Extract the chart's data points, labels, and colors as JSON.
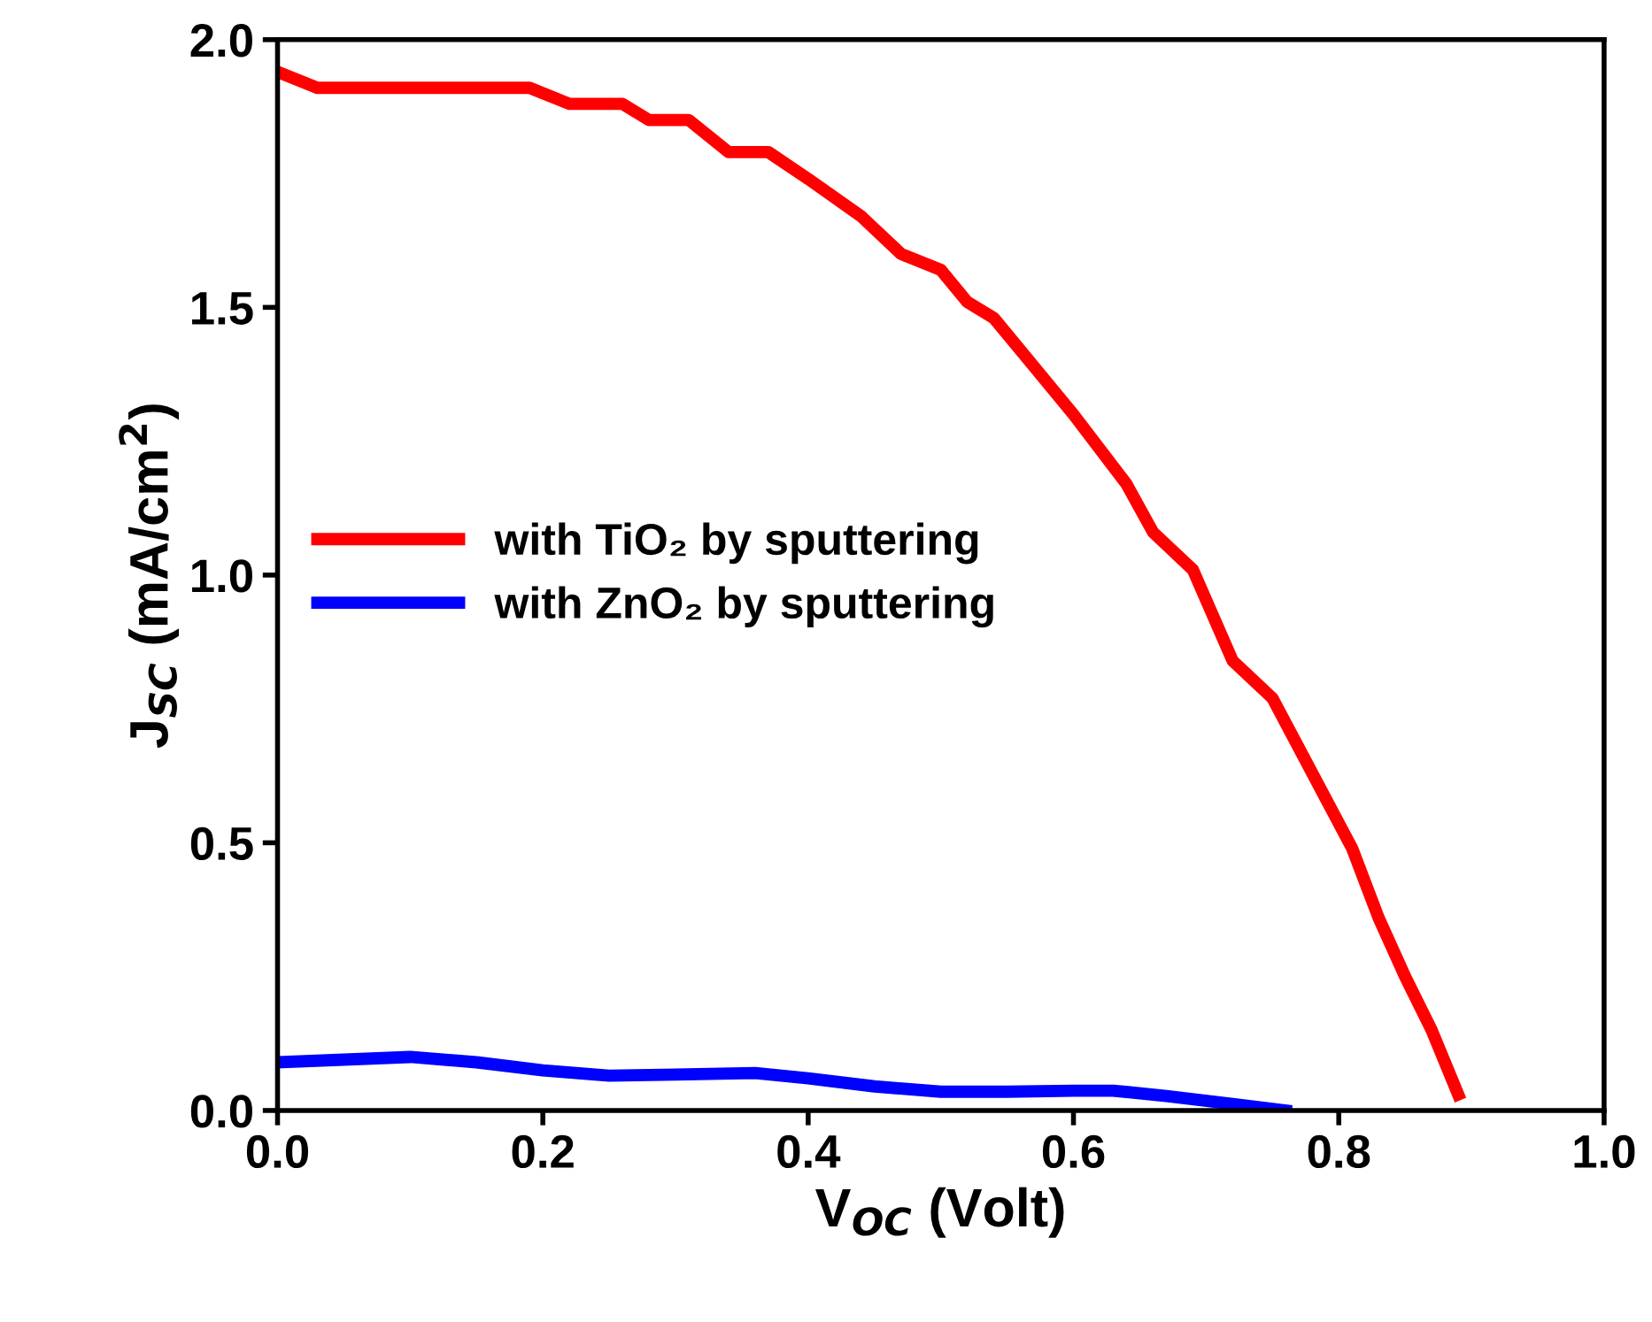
{
  "chart_data": {
    "type": "line",
    "xlabel": "V$_{OC}$ (Volt)",
    "ylabel": "J$_{SC}$ (mA/cm$^{2}$)",
    "xlim": [
      0.0,
      1.0
    ],
    "ylim": [
      0.0,
      2.0
    ],
    "xticks": [
      {
        "value": 0.0,
        "label": "0.0"
      },
      0.2,
      0.4,
      0.6,
      0.8,
      {
        "value": 1.0,
        "label": "1.0"
      }
    ],
    "yticks": [
      {
        "value": 0.0,
        "label": "0.0"
      },
      0.5,
      {
        "value": 1.0,
        "label": "1.0"
      },
      1.5,
      {
        "value": 2.0,
        "label": "2.0"
      }
    ],
    "grid": false,
    "legend": "center left",
    "marker": "none",
    "line_style": "solid",
    "series": [
      {
        "name": "with TiO₂ by sputtering",
        "color": "#ff0000",
        "x": [
          0,
          0.03,
          0.19,
          0.22,
          0.26,
          0.28,
          0.31,
          0.34,
          0.37,
          0.4,
          0.44,
          0.47,
          0.5,
          0.52,
          0.54,
          0.57,
          0.6,
          0.64,
          0.66,
          0.69,
          0.72,
          0.75,
          0.78,
          0.81,
          0.83,
          0.85,
          0.87,
          0.89
        ],
        "values": [
          1.94,
          1.91,
          1.91,
          1.88,
          1.88,
          1.85,
          1.85,
          1.79,
          1.79,
          1.74,
          1.67,
          1.6,
          1.57,
          1.51,
          1.48,
          1.39,
          1.3,
          1.17,
          1.08,
          1.01,
          0.84,
          0.77,
          0.63,
          0.49,
          0.36,
          0.25,
          0.15,
          0.03
        ]
      },
      {
        "name": "with ZnO₂ by sputtering",
        "color": "#0000ff",
        "x": [
          0,
          0.05,
          0.1,
          0.15,
          0.2,
          0.25,
          0.3,
          0.36,
          0.4,
          0.45,
          0.5,
          0.55,
          0.6,
          0.63,
          0.67,
          0.72,
          0.76
        ],
        "values": [
          0.09,
          0.095,
          0.1,
          0.09,
          0.075,
          0.065,
          0.067,
          0.07,
          0.06,
          0.045,
          0.035,
          0.035,
          0.037,
          0.037,
          0.027,
          0.012,
          0.0
        ]
      }
    ]
  }
}
